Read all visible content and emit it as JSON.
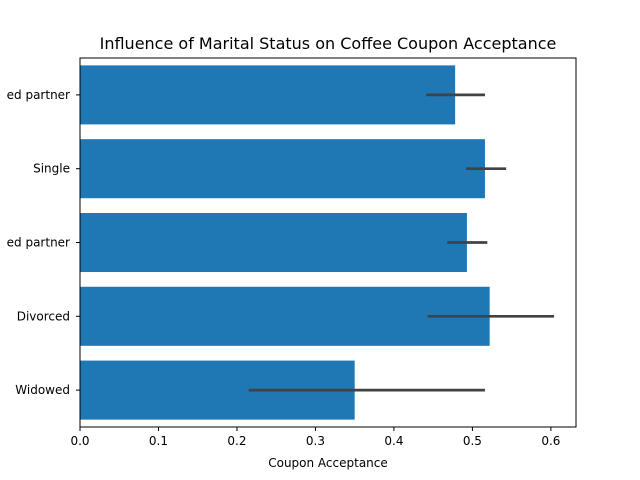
{
  "chart_data": {
    "type": "bar",
    "orientation": "horizontal",
    "title": "Influence of Marital Status on Coffee Coupon Acceptance",
    "xlabel": "Coupon Acceptance",
    "ylabel": "",
    "xlim": [
      0,
      0.632
    ],
    "x_ticks": [
      0.0,
      0.1,
      0.2,
      0.3,
      0.4,
      0.5,
      0.6
    ],
    "x_tick_labels": [
      "0.0",
      "0.1",
      "0.2",
      "0.3",
      "0.4",
      "0.5",
      "0.6"
    ],
    "categories": [
      "ed partner",
      "Single",
      "ed partner",
      "Divorced",
      "Widowed"
    ],
    "values": [
      0.478,
      0.516,
      0.493,
      0.522,
      0.35
    ],
    "error_low": [
      0.441,
      0.492,
      0.468,
      0.443,
      0.215
    ],
    "error_high": [
      0.516,
      0.543,
      0.519,
      0.604,
      0.516
    ],
    "bar_color": "#1f77b4",
    "errorbar_color": "#424242",
    "grid": false,
    "legend": "none"
  }
}
